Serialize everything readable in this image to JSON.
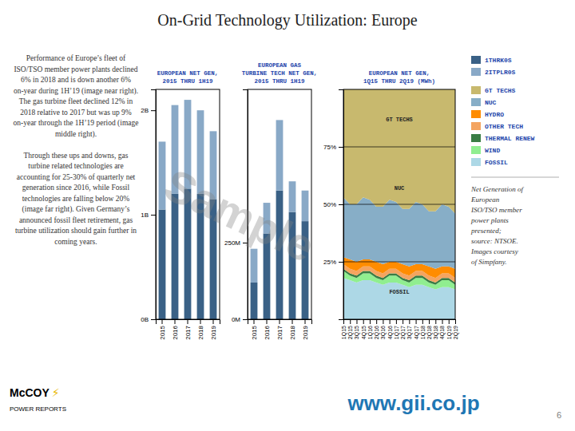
{
  "title": "On-Grid Technology Utilization: Europe",
  "text": "Performance of Europe’s fleet of ISO/TSO member power plants declined 6% in 2018 and is down another 6% on-year during 1H’19 (image near right). The gas turbine fleet declined 12% in 2018 relative to 2017 but was up 9% on-year through the 1H’19 period (image middle right).\n\nThrough these ups and downs, gas turbine related technologies are accounting for 25-30% of quarterly net generation since 2016, while Fossil technologies are falling below 20% (image far right). Given Germany’s announced fossil fleet retirement, gas turbine utilization should gain further in coming years.",
  "note": "Net Generation of\nEuropean\nISO/TSO member\npower plants\npresented;\nsource: NTSOE.\nImages courtesy\nof Simpfany.",
  "annotations": [
    "Sample",
    "McCOY",
    "⚡",
    "POWER REPORTS",
    "www.gii.co.jp",
    "6"
  ],
  "chart_data": [
    {
      "type": "bar",
      "stacked": true,
      "title": "EUROPEAN NET GEN,\n2015 THRU 1H19",
      "categories": [
        "2015",
        "2016",
        "2017",
        "2018",
        "2019"
      ],
      "series": [
        {
          "name": "1THRK0S",
          "color": "#3a6186",
          "values": [
            1.05,
            1.2,
            1.25,
            1.2,
            1.15
          ]
        },
        {
          "name": "2ITPLR0S",
          "color": "#89a9c7",
          "values": [
            0.65,
            0.85,
            0.85,
            0.8,
            0.65
          ]
        }
      ],
      "ylim": [
        0,
        2.2
      ],
      "yticks": [
        {
          "value": 0,
          "label": "0B"
        },
        {
          "value": 1.0,
          "label": "1B"
        },
        {
          "value": 2.0,
          "label": "2B"
        }
      ],
      "grid": false,
      "legend": "right"
    },
    {
      "type": "bar",
      "stacked": true,
      "title": "EUROPEAN GAS\nTURBINE TECH NET GEN,\n2015 THRU 1H19",
      "categories": [
        "2015",
        "2016",
        "2017",
        "2018",
        "2019"
      ],
      "series": [
        {
          "color": "#3a6186",
          "values": [
            0.12,
            0.28,
            0.42,
            0.35,
            0.32
          ]
        },
        {
          "color": "#89a9c7",
          "values": [
            0.11,
            0.1,
            0.23,
            0.1,
            0.1
          ]
        }
      ],
      "ylim": [
        0,
        0.75
      ],
      "yticks": [
        {
          "value": 0,
          "label": "0M"
        },
        {
          "value": 0.25,
          "label": "250M"
        }
      ],
      "grid": false
    },
    {
      "type": "area",
      "stacked": true,
      "title": "EUROPEAN NET GEN,\n1Q15 THRU 2Q19 (MWh)",
      "categories": [
        "1Q15",
        "2Q15",
        "3Q15",
        "4Q15",
        "1Q16",
        "2Q16",
        "3Q16",
        "4Q16",
        "1Q17",
        "2Q17",
        "3Q17",
        "4Q17",
        "1Q18",
        "2Q18",
        "3Q18",
        "4Q18",
        "1Q19",
        "2Q19"
      ],
      "series": [
        {
          "name": "FOSSIL",
          "color": "#add8e6",
          "values": [
            0.18,
            0.17,
            0.16,
            0.17,
            0.17,
            0.16,
            0.15,
            0.16,
            0.16,
            0.15,
            0.14,
            0.15,
            0.15,
            0.14,
            0.13,
            0.14,
            0.14,
            0.13
          ]
        },
        {
          "name": "WIND",
          "color": "#90ee90",
          "values": [
            0.03,
            0.02,
            0.02,
            0.03,
            0.03,
            0.02,
            0.02,
            0.03,
            0.03,
            0.02,
            0.02,
            0.03,
            0.03,
            0.02,
            0.02,
            0.03,
            0.03,
            0.02
          ]
        },
        {
          "name": "THERMAL RENEW",
          "color": "#3a7d44",
          "values": [
            0.01,
            0.01,
            0.01,
            0.01,
            0.01,
            0.01,
            0.01,
            0.01,
            0.01,
            0.01,
            0.01,
            0.01,
            0.01,
            0.01,
            0.01,
            0.01,
            0.01,
            0.01
          ]
        },
        {
          "name": "OTHER TECH",
          "color": "#f4a460",
          "values": [
            0.02,
            0.02,
            0.02,
            0.02,
            0.02,
            0.02,
            0.02,
            0.02,
            0.02,
            0.02,
            0.02,
            0.02,
            0.02,
            0.02,
            0.02,
            0.02,
            0.02,
            0.02
          ]
        },
        {
          "name": "HYDRO",
          "color": "#ff8c00",
          "values": [
            0.03,
            0.04,
            0.04,
            0.03,
            0.03,
            0.04,
            0.04,
            0.03,
            0.03,
            0.04,
            0.04,
            0.03,
            0.03,
            0.04,
            0.04,
            0.03,
            0.03,
            0.04
          ]
        },
        {
          "name": "NUC",
          "color": "#87aec7",
          "values": [
            0.26,
            0.24,
            0.25,
            0.27,
            0.26,
            0.24,
            0.25,
            0.27,
            0.26,
            0.24,
            0.25,
            0.27,
            0.26,
            0.24,
            0.25,
            0.27,
            0.26,
            0.24
          ]
        },
        {
          "name": "GT TECHS",
          "color": "#c8b96e",
          "values": [
            0.47,
            0.5,
            0.5,
            0.47,
            0.48,
            0.51,
            0.51,
            0.48,
            0.49,
            0.52,
            0.52,
            0.49,
            0.5,
            0.53,
            0.53,
            0.5,
            0.51,
            0.54
          ]
        }
      ],
      "ylim": [
        0,
        1.0
      ],
      "yticks": [
        {
          "value": 0.25,
          "label": "25%"
        },
        {
          "value": 0.5,
          "label": "50%"
        },
        {
          "value": 0.75,
          "label": "75%"
        }
      ],
      "grid": true,
      "legend": "right",
      "annotations": [
        "GT TECHS",
        "NUC",
        "FOSSIL"
      ]
    }
  ]
}
